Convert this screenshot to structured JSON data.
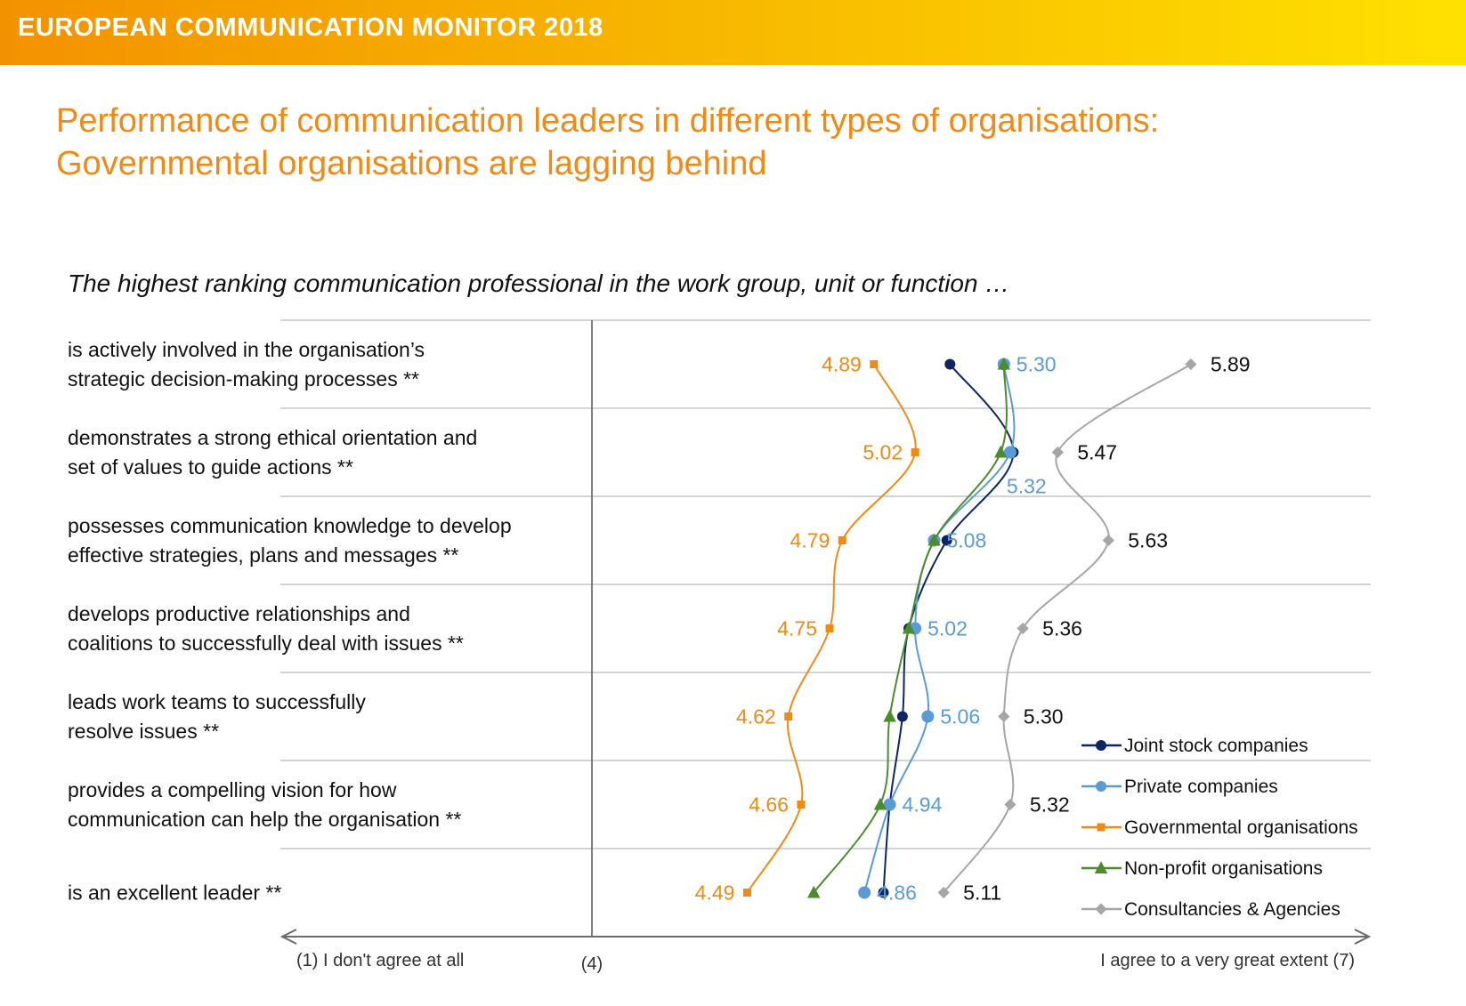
{
  "header": {
    "title": "EUROPEAN COMMUNICATION MONITOR 2018"
  },
  "headline": {
    "line1": "Performance of communication leaders in different types of organisations:",
    "line2": "Governmental organisations are lagging behind"
  },
  "chart_data": {
    "type": "line",
    "title": "The highest ranking communication professional in the work group, unit or function …",
    "categories": [
      [
        "is actively involved in the organisation’s",
        "strategic decision-making processes **"
      ],
      [
        "demonstrates a strong ethical orientation and",
        "set of values to guide actions **"
      ],
      [
        "possesses communication knowledge to develop",
        "effective strategies, plans and messages **"
      ],
      [
        "develops productive relationships and",
        "coalitions to successfully deal with issues **"
      ],
      [
        "leads work teams to successfully",
        "resolve issues **"
      ],
      [
        "provides a compelling vision for how",
        "communication can help the organisation **"
      ],
      [
        "is an excellent leader **"
      ]
    ],
    "xlim": [
      1,
      7
    ],
    "xaxis": {
      "left_label": "(1) I don't agree at all",
      "mid_label": "(4)",
      "right_label": "I agree to a very great extent (7)"
    },
    "series": [
      {
        "name": "Joint stock companies",
        "color": "#0d2560",
        "marker": "circle",
        "values": [
          5.13,
          5.33,
          5.12,
          5.0,
          4.98,
          4.94,
          4.92
        ],
        "labels": [
          "",
          "",
          "",
          "",
          "",
          "",
          ""
        ]
      },
      {
        "name": "Private companies",
        "color": "#5b9bd5",
        "marker": "circle",
        "values": [
          5.3,
          5.32,
          5.08,
          5.02,
          5.06,
          4.94,
          4.86
        ],
        "labels": [
          "5.30",
          "5.32",
          "5.08",
          "5.02",
          "5.06",
          "4.94",
          "4.86"
        ]
      },
      {
        "name": "Governmental organisations",
        "color": "#ef8a17",
        "marker": "square",
        "values": [
          4.89,
          5.02,
          4.79,
          4.75,
          4.62,
          4.66,
          4.49
        ],
        "labels": [
          "4.89",
          "5.02",
          "4.79",
          "4.75",
          "4.62",
          "4.66",
          "4.49"
        ]
      },
      {
        "name": "Non-profit organisations",
        "color": "#4e8a2e",
        "marker": "triangle",
        "values": [
          5.3,
          5.29,
          5.08,
          5.0,
          4.94,
          4.91,
          4.7
        ],
        "labels": [
          "",
          "",
          "",
          "",
          "",
          "",
          ""
        ]
      },
      {
        "name": "Consultancies & Agencies",
        "color": "#a6a6a6",
        "marker": "diamond",
        "values": [
          5.89,
          5.47,
          5.63,
          5.36,
          5.3,
          5.32,
          5.11
        ],
        "labels": [
          "5.89",
          "5.47",
          "5.63",
          "5.36",
          "5.30",
          "5.32",
          "5.11"
        ]
      }
    ],
    "legend": "bottom-right",
    "grid": true
  }
}
